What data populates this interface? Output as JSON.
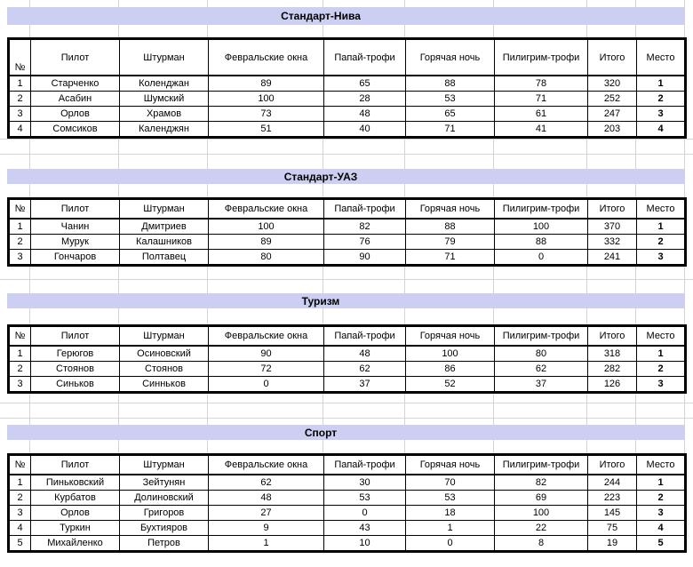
{
  "columns": [
    "№",
    "Пилот",
    "Штурман",
    "Февральские окна",
    "Папай-трофи",
    "Горячая ночь",
    "Пилигрим-трофи",
    "Итого",
    "Место"
  ],
  "tables": [
    {
      "title": "Стандарт-Нива",
      "rows": [
        [
          "1",
          "Старченко",
          "Коленджан",
          "89",
          "65",
          "88",
          "78",
          "320",
          "1"
        ],
        [
          "2",
          "Асабин",
          "Шумский",
          "100",
          "28",
          "53",
          "71",
          "252",
          "2"
        ],
        [
          "3",
          "Орлов",
          "Храмов",
          "73",
          "48",
          "65",
          "61",
          "247",
          "3"
        ],
        [
          "4",
          "Сомсиков",
          "Календжян",
          "51",
          "40",
          "71",
          "41",
          "203",
          "4"
        ]
      ]
    },
    {
      "title": "Стандарт-УАЗ",
      "rows": [
        [
          "1",
          "Чанин",
          "Дмитриев",
          "100",
          "82",
          "88",
          "100",
          "370",
          "1"
        ],
        [
          "2",
          "Мурук",
          "Калашников",
          "89",
          "76",
          "79",
          "88",
          "332",
          "2"
        ],
        [
          "3",
          "Гончаров",
          "Полтавец",
          "80",
          "90",
          "71",
          "0",
          "241",
          "3"
        ]
      ]
    },
    {
      "title": "Туризм",
      "rows": [
        [
          "1",
          "Герюгов",
          "Осиновский",
          "90",
          "48",
          "100",
          "80",
          "318",
          "1"
        ],
        [
          "2",
          "Стоянов",
          "Стоянов",
          "72",
          "62",
          "86",
          "62",
          "282",
          "2"
        ],
        [
          "3",
          "Синьков",
          "Синньков",
          "0",
          "37",
          "52",
          "37",
          "126",
          "3"
        ]
      ]
    },
    {
      "title": "Спорт",
      "rows": [
        [
          "1",
          "Пиньковский",
          "Зейтунян",
          "62",
          "30",
          "70",
          "82",
          "244",
          "1"
        ],
        [
          "2",
          "Курбатов",
          "Долиновский",
          "48",
          "53",
          "53",
          "69",
          "223",
          "2"
        ],
        [
          "3",
          "Орлов",
          "Григоров",
          "27",
          "0",
          "18",
          "100",
          "145",
          "3"
        ],
        [
          "4",
          "Туркин",
          "Бухтияров",
          "9",
          "43",
          "1",
          "22",
          "75",
          "4"
        ],
        [
          "5",
          "Михайленко",
          "Петров",
          "1",
          "10",
          "0",
          "8",
          "19",
          "5"
        ]
      ]
    }
  ],
  "colors": {
    "title_band_bg": "#cdcff2",
    "gridline": "#d4d4d4",
    "table_border": "#000000",
    "text": "#000000"
  }
}
